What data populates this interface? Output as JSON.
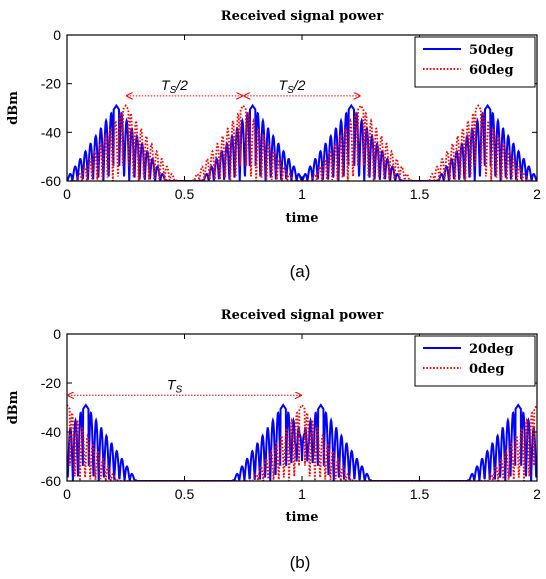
{
  "chart_data": [
    {
      "id": "a",
      "type": "line",
      "title": "Received signal power",
      "xlabel": "time",
      "ylabel": "dBm",
      "xlim": [
        0,
        2
      ],
      "ylim": [
        -60,
        0
      ],
      "xticks": [
        "0",
        "0.5",
        "1",
        "1.5",
        "2"
      ],
      "yticks": [
        "0",
        "-20",
        "-40",
        "-60"
      ],
      "legend_position": "top-right",
      "series": [
        {
          "name": "50deg",
          "color": "#0000ff",
          "style": "solid",
          "peaks": [
            0.21,
            0.79,
            1.21,
            1.79
          ],
          "peak_dbm": -29
        },
        {
          "name": "60deg",
          "color": "#ff0000",
          "style": "dotted",
          "peaks": [
            0.25,
            0.75,
            1.25,
            1.75
          ],
          "peak_dbm": -29
        }
      ],
      "annotations": [
        {
          "text": "T",
          "sub": "S",
          "suffix": "/2",
          "x_start": 0.25,
          "x_end": 0.75,
          "y": -25
        },
        {
          "text": "T",
          "sub": "S",
          "suffix": "/2",
          "x_start": 0.75,
          "x_end": 1.25,
          "y": -25
        }
      ],
      "caption": "(a)"
    },
    {
      "id": "b",
      "type": "line",
      "title": "Received signal power",
      "xlabel": "time",
      "ylabel": "dBm",
      "xlim": [
        0,
        2
      ],
      "ylim": [
        -60,
        0
      ],
      "xticks": [
        "0",
        "0.5",
        "1",
        "1.5",
        "2"
      ],
      "yticks": [
        "0",
        "-20",
        "-40",
        "-60"
      ],
      "legend_position": "top-right",
      "series": [
        {
          "name": "20deg",
          "color": "#0000ff",
          "style": "solid",
          "peaks": [
            0.08,
            0.92,
            1.08,
            1.92
          ],
          "peak_dbm": -29
        },
        {
          "name": "0deg",
          "color": "#ff0000",
          "style": "dotted",
          "peaks": [
            0.0,
            1.0,
            2.0
          ],
          "peak_dbm": -29
        }
      ],
      "annotations": [
        {
          "text": "T",
          "sub": "S",
          "suffix": "",
          "x_start": 0.0,
          "x_end": 1.0,
          "y": -25
        }
      ],
      "caption": "(b)"
    }
  ]
}
